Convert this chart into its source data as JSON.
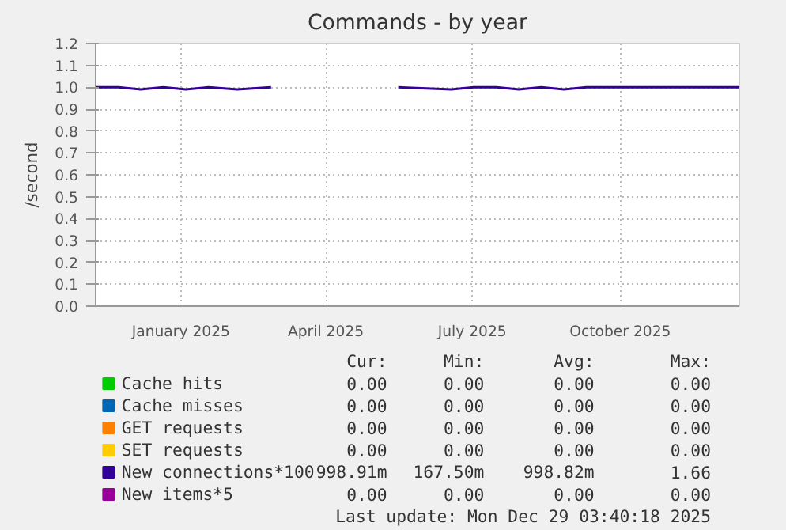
{
  "chart_data": {
    "type": "line",
    "title": "Commands - by year",
    "ylabel": "/second",
    "xlim": [
      "2024-11-24",
      "2025-12-29"
    ],
    "xticks": [
      {
        "value": "2025-01-16",
        "label": "January 2025"
      },
      {
        "value": "2025-04-16",
        "label": "April 2025"
      },
      {
        "value": "2025-07-16",
        "label": "July 2025"
      },
      {
        "value": "2025-10-16",
        "label": "October 2025"
      }
    ],
    "ylim": [
      0,
      1.2
    ],
    "yticks": [
      {
        "value": 0,
        "label": "0.0"
      },
      {
        "value": 0.1,
        "label": "0.1"
      },
      {
        "value": 0.2,
        "label": "0.2"
      },
      {
        "value": 0.3,
        "label": "0.3"
      },
      {
        "value": 0.4,
        "label": "0.4"
      },
      {
        "value": 0.5,
        "label": "0.5"
      },
      {
        "value": 0.6,
        "label": "0.6"
      },
      {
        "value": 0.7,
        "label": "0.7"
      },
      {
        "value": 0.8,
        "label": "0.8"
      },
      {
        "value": 0.9,
        "label": "0.9"
      },
      {
        "value": 1.0,
        "label": "1.0"
      },
      {
        "value": 1.1,
        "label": "1.1"
      },
      {
        "value": 1.2,
        "label": "1.2"
      }
    ],
    "x": [
      "2024-11-24",
      "2024-12-08",
      "2024-12-22",
      "2025-01-05",
      "2025-01-19",
      "2025-02-02",
      "2025-02-20",
      "2025-03-13",
      "2025-04-20",
      "2025-05-31",
      "2025-07-03",
      "2025-07-17",
      "2025-07-31",
      "2025-08-14",
      "2025-08-28",
      "2025-09-11",
      "2025-09-25",
      "2025-10-09",
      "2025-10-23",
      "2025-11-06",
      "2025-11-20",
      "2025-12-04",
      "2025-12-18",
      "2025-12-29"
    ],
    "series": [
      {
        "name": "Cache hits",
        "color": "#00cc00",
        "values": [
          null,
          null,
          null,
          null,
          null,
          null,
          null,
          null,
          null,
          null,
          null,
          null,
          null,
          null,
          null,
          null,
          null,
          null,
          null,
          null,
          null,
          null,
          null,
          null
        ]
      },
      {
        "name": "Cache misses",
        "color": "#0066b3",
        "values": [
          null,
          null,
          null,
          null,
          null,
          null,
          null,
          null,
          null,
          null,
          null,
          null,
          null,
          null,
          null,
          null,
          null,
          null,
          null,
          null,
          null,
          null,
          null,
          null
        ]
      },
      {
        "name": "GET requests",
        "color": "#ff8000",
        "values": [
          null,
          null,
          null,
          null,
          null,
          null,
          null,
          null,
          null,
          null,
          null,
          null,
          null,
          null,
          null,
          null,
          null,
          null,
          null,
          null,
          null,
          null,
          null,
          null
        ]
      },
      {
        "name": "SET requests",
        "color": "#ffcc00",
        "values": [
          null,
          null,
          null,
          null,
          null,
          null,
          null,
          null,
          null,
          null,
          null,
          null,
          null,
          null,
          null,
          null,
          null,
          null,
          null,
          null,
          null,
          null,
          null,
          null
        ]
      },
      {
        "name": "New connections*100",
        "color": "#330099",
        "values": [
          1.0,
          1.0,
          0.99,
          1.0,
          0.99,
          1.0,
          0.99,
          1.0,
          null,
          1.0,
          0.99,
          1.0,
          1.0,
          0.99,
          1.0,
          0.99,
          1.0,
          1.0,
          1.0,
          1.0,
          1.0,
          1.0,
          1.0,
          1.0
        ]
      },
      {
        "name": "New items*5",
        "color": "#990099",
        "values": [
          null,
          null,
          null,
          null,
          null,
          null,
          null,
          null,
          null,
          null,
          null,
          null,
          null,
          null,
          null,
          null,
          null,
          null,
          null,
          null,
          null,
          null,
          null,
          null
        ]
      }
    ],
    "grid": true,
    "legend": "bottom",
    "annotations": [
      "Cur:",
      "Min:",
      "Avg:",
      "Max:",
      "0.00",
      "0.00",
      "0.00",
      "0.00",
      "0.00",
      "0.00",
      "0.00",
      "0.00",
      "0.00",
      "0.00",
      "0.00",
      "0.00",
      "0.00",
      "0.00",
      "0.00",
      "0.00",
      "998.91m",
      "167.50m",
      "998.82m",
      "1.66",
      "0.00",
      "0.00",
      "0.00",
      "0.00",
      "Last update: Mon Dec 29 03:40:18 2025"
    ]
  }
}
